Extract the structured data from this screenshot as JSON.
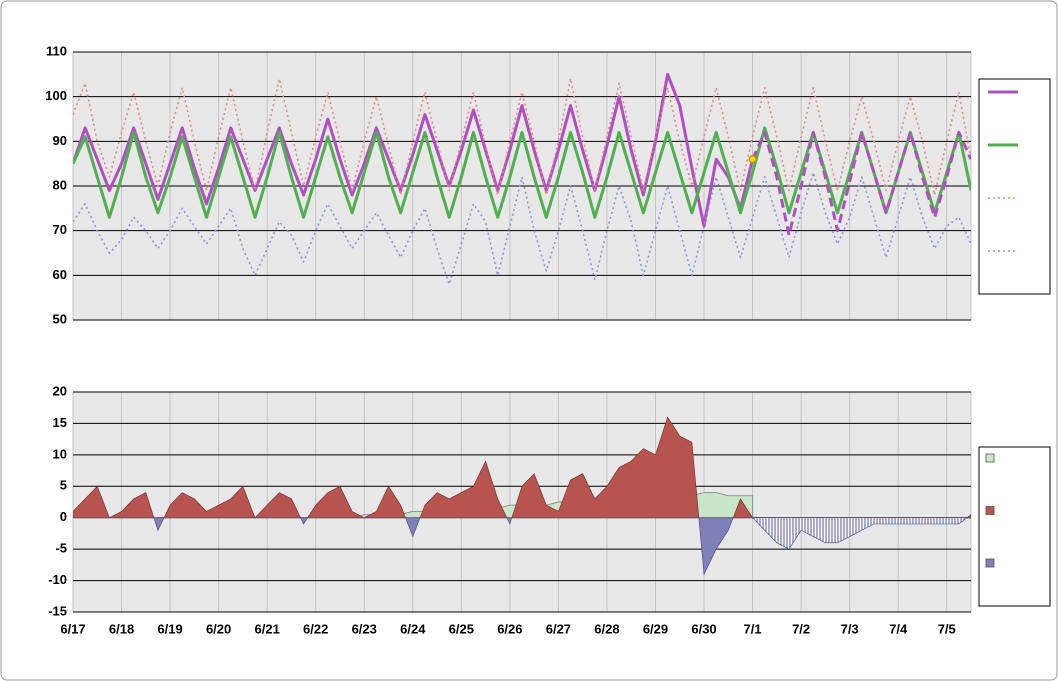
{
  "chart_data": {
    "categories": [
      "6/17",
      null,
      null,
      null,
      "6/18",
      null,
      null,
      null,
      "6/19",
      null,
      null,
      null,
      "6/20",
      null,
      null,
      null,
      "6/21",
      null,
      null,
      null,
      "6/22",
      null,
      null,
      null,
      "6/23",
      null,
      null,
      null,
      "6/24",
      null,
      null,
      null,
      "6/25",
      null,
      null,
      null,
      "6/26",
      null,
      null,
      null,
      "6/27",
      null,
      null,
      null,
      "6/28",
      null,
      null,
      null,
      "6/29",
      null,
      null,
      null,
      "6/30",
      null,
      null,
      null,
      "7/1",
      null,
      null,
      null,
      "7/2",
      null,
      null,
      null,
      "7/3",
      null,
      null,
      null,
      "7/4",
      null,
      null,
      null,
      "7/5",
      null,
      null
    ],
    "grid": true,
    "panels": [
      {
        "type": "line",
        "ylim": [
          50,
          110
        ],
        "yticks": [
          50,
          60,
          70,
          80,
          90,
          100,
          110
        ],
        "series": [
          {
            "color": "#b050c0",
            "style": "solid",
            "marker_last": "#ffd700",
            "values": [
              85,
              93,
              86,
              79,
              85,
              93,
              85,
              77,
              85,
              93,
              84,
              76,
              84,
              93,
              86,
              79,
              86,
              93,
              85,
              78,
              86,
              95,
              86,
              78,
              85,
              93,
              86,
              79,
              87,
              96,
              88,
              80,
              88,
              97,
              88,
              79,
              88,
              98,
              88,
              79,
              88,
              98,
              88,
              79,
              89,
              100,
              88,
              78,
              90,
              105,
              98,
              84,
              71,
              86,
              82,
              75,
              86,
              null,
              null,
              null,
              null,
              null,
              null,
              null,
              null,
              null,
              null,
              null,
              null,
              null,
              null,
              null,
              null,
              null,
              null
            ]
          },
          {
            "color": "#50b050",
            "style": "solid",
            "values": [
              85,
              91,
              82,
              73,
              82,
              92,
              82,
              74,
              82,
              91,
              82,
              73,
              82,
              91,
              82,
              73,
              82,
              92,
              82,
              73,
              82,
              91,
              82,
              74,
              83,
              92,
              82,
              74,
              83,
              92,
              82,
              73,
              82,
              92,
              82,
              73,
              82,
              92,
              82,
              73,
              82,
              92,
              83,
              73,
              82,
              92,
              83,
              74,
              83,
              92,
              83,
              74,
              83,
              92,
              83,
              74,
              83,
              93,
              84,
              74,
              83,
              92,
              83,
              74,
              83,
              92,
              83,
              74,
              83,
              92,
              83,
              74,
              83,
              92,
              79
            ]
          },
          {
            "color": "#e08888",
            "style": "dotted",
            "values": [
              96,
              103,
              90,
              82,
              92,
              101,
              90,
              80,
              92,
              102,
              90,
              79,
              91,
              102,
              90,
              79,
              92,
              104,
              92,
              80,
              91,
              101,
              90,
              79,
              90,
              100,
              89,
              78,
              90,
              101,
              90,
              79,
              90,
              101,
              89,
              78,
              90,
              101,
              90,
              78,
              90,
              104,
              91,
              79,
              91,
              103,
              91,
              79,
              91,
              102,
              90,
              80,
              91,
              102,
              91,
              79,
              91,
              102,
              91,
              79,
              91,
              102,
              90,
              79,
              90,
              100,
              90,
              79,
              90,
              100,
              90,
              78,
              90,
              101,
              86
            ]
          },
          {
            "color": "#9090e0",
            "style": "dotted",
            "values": [
              72,
              76,
              70,
              65,
              68,
              73,
              70,
              66,
              70,
              75,
              71,
              67,
              71,
              75,
              66,
              60,
              66,
              72,
              69,
              63,
              70,
              76,
              71,
              66,
              70,
              74,
              69,
              64,
              70,
              75,
              66,
              58,
              67,
              76,
              72,
              60,
              71,
              82,
              70,
              61,
              70,
              80,
              70,
              59,
              70,
              80,
              72,
              60,
              70,
              80,
              70,
              60,
              71,
              82,
              73,
              64,
              73,
              82,
              73,
              64,
              74,
              83,
              74,
              67,
              73,
              82,
              73,
              64,
              73,
              82,
              73,
              66,
              71,
              73,
              67
            ]
          },
          {
            "color": "#b050c0",
            "style": "dashed",
            "legend": false,
            "values": [
              null,
              null,
              null,
              null,
              null,
              null,
              null,
              null,
              null,
              null,
              null,
              null,
              null,
              null,
              null,
              null,
              null,
              null,
              null,
              null,
              null,
              null,
              null,
              null,
              null,
              null,
              null,
              null,
              null,
              null,
              null,
              null,
              null,
              null,
              null,
              null,
              null,
              null,
              null,
              null,
              null,
              null,
              null,
              null,
              null,
              null,
              null,
              null,
              null,
              null,
              null,
              null,
              null,
              null,
              null,
              null,
              86,
              92,
              82,
              69,
              80,
              92,
              82,
              70,
              81,
              92,
              83,
              74,
              83,
              92,
              82,
              73,
              82,
              92,
              86
            ]
          }
        ]
      },
      {
        "type": "area",
        "ylim": [
          -15,
          20
        ],
        "yticks": [
          -15,
          -10,
          -5,
          0,
          5,
          10,
          15,
          20
        ],
        "legend": [
          "#c8e6c8",
          "#b85450",
          "#8080b8"
        ],
        "series": [
          {
            "color": "#c8e6c8",
            "line_color": "#909090",
            "values": [
              0,
              0,
              0,
              0,
              0,
              0,
              0,
              0,
              0,
              0,
              0,
              0,
              0,
              0,
              0,
              0,
              0,
              0,
              0,
              0,
              0,
              0,
              0,
              0,
              0.5,
              0.5,
              0.5,
              0.5,
              1,
              1,
              1,
              1,
              1.5,
              1.5,
              1.5,
              1.5,
              2,
              2,
              2,
              2,
              2.5,
              2.5,
              2.5,
              2.5,
              3,
              3,
              3,
              3,
              3.5,
              3.5,
              3.5,
              3.5,
              4,
              4,
              3.5,
              3.5,
              3.5,
              null,
              null,
              null,
              null,
              null,
              null,
              null,
              null,
              null,
              null,
              null,
              null,
              null,
              null,
              null,
              null,
              null,
              null
            ]
          },
          {
            "color": "#b85450",
            "negative_color": "#8080b8",
            "values": [
              1,
              3,
              5,
              0,
              1,
              3,
              4,
              -2,
              2,
              4,
              3,
              1,
              2,
              3,
              5,
              0,
              2,
              4,
              3,
              -1,
              2,
              4,
              5,
              1,
              0,
              1,
              5,
              2,
              -3,
              2,
              4,
              3,
              4,
              5,
              9,
              3,
              -1,
              5,
              7,
              2,
              1,
              6,
              7,
              3,
              5,
              8,
              9,
              11,
              10,
              16,
              13,
              12,
              -9,
              -5,
              -2,
              3,
              0,
              null,
              null,
              null,
              null,
              null,
              null,
              null,
              null,
              null,
              null,
              null,
              null,
              null,
              null,
              null,
              null,
              null,
              null
            ]
          },
          {
            "color": "#b85450",
            "negative_color": "#7070c0",
            "pattern": "hatch",
            "values": [
              null,
              null,
              null,
              null,
              null,
              null,
              null,
              null,
              null,
              null,
              null,
              null,
              null,
              null,
              null,
              null,
              null,
              null,
              null,
              null,
              null,
              null,
              null,
              null,
              null,
              null,
              null,
              null,
              null,
              null,
              null,
              null,
              null,
              null,
              null,
              null,
              null,
              null,
              null,
              null,
              null,
              null,
              null,
              null,
              null,
              null,
              null,
              null,
              null,
              null,
              null,
              null,
              null,
              null,
              null,
              null,
              0,
              -2,
              -4,
              -5,
              -2,
              -3,
              -4,
              -4,
              -3,
              -2,
              -1,
              -1,
              -1,
              -1,
              -1,
              -1,
              -1,
              -1,
              0.5
            ]
          }
        ]
      }
    ]
  }
}
